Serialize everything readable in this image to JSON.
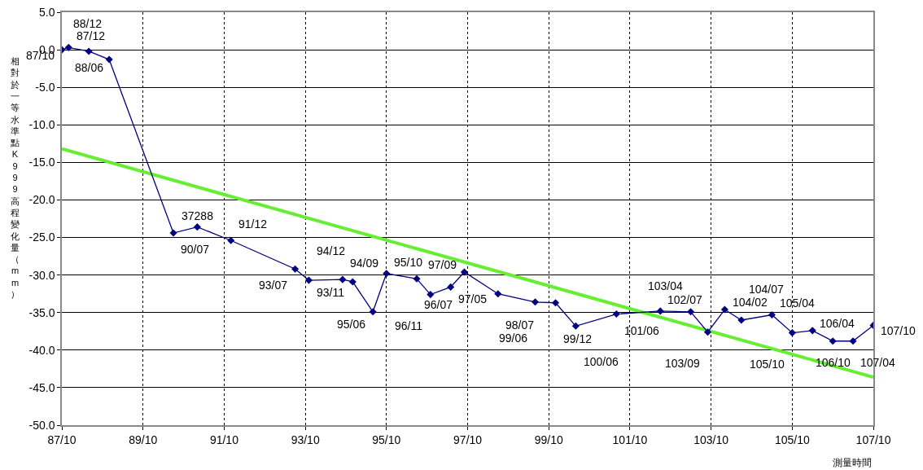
{
  "chart_data": {
    "type": "line",
    "xlabel": "測量時間",
    "ylabel": "相對於一等水準點K999高程變化量（mm）",
    "xlim": [
      "1998-10",
      "2018-10"
    ],
    "xticks": [
      {
        "value": "1998-10",
        "label": "87/10"
      },
      {
        "value": "2000-10",
        "label": "89/10"
      },
      {
        "value": "2002-10",
        "label": "91/10"
      },
      {
        "value": "2004-10",
        "label": "93/10"
      },
      {
        "value": "2006-10",
        "label": "95/10"
      },
      {
        "value": "2008-10",
        "label": "97/10"
      },
      {
        "value": "2010-10",
        "label": "99/10"
      },
      {
        "value": "2012-10",
        "label": "101/10"
      },
      {
        "value": "2014-10",
        "label": "103/10"
      },
      {
        "value": "2016-10",
        "label": "105/10"
      },
      {
        "value": "2018-10",
        "label": "107/10"
      }
    ],
    "ylim": [
      -50,
      5
    ],
    "yticks": [
      {
        "value": 5,
        "label": "5.0"
      },
      {
        "value": 0,
        "label": "0.0"
      },
      {
        "value": -5,
        "label": "-5.0"
      },
      {
        "value": -10,
        "label": "-10.0"
      },
      {
        "value": -15,
        "label": "-15.0"
      },
      {
        "value": -20,
        "label": "-20.0"
      },
      {
        "value": -25,
        "label": "-25.0"
      },
      {
        "value": -30,
        "label": "-30.0"
      },
      {
        "value": -35,
        "label": "-35.0"
      },
      {
        "value": -40,
        "label": "-40.0"
      },
      {
        "value": -45,
        "label": "-45.0"
      },
      {
        "value": -50,
        "label": "-50.0"
      }
    ],
    "grid": true,
    "marker": "diamond",
    "series": [
      {
        "color": "#000080",
        "x": [
          "1998-10",
          "1998-12",
          "1999-06",
          "1999-12",
          "2001-07",
          "2002-02",
          "2002-12",
          "2004-07",
          "2004-11",
          "2005-09",
          "2005-12",
          "2006-06",
          "2006-10",
          "2007-07",
          "2007-11",
          "2008-05",
          "2008-09",
          "2009-07",
          "2010-06",
          "2010-12",
          "2011-06",
          "2012-06",
          "2013-07",
          "2014-04",
          "2014-09",
          "2015-02",
          "2015-07",
          "2016-04",
          "2016-10",
          "2017-04",
          "2017-10",
          "2018-04",
          "2018-10"
        ],
        "values": [
          0.0,
          0.3,
          -0.2,
          -1.3,
          -24.4,
          -23.6,
          -25.4,
          -29.2,
          -30.7,
          -30.6,
          -30.9,
          -34.9,
          -29.8,
          -30.5,
          -32.6,
          -31.6,
          -29.6,
          -32.5,
          -33.6,
          -33.7,
          -36.8,
          -35.2,
          -34.8,
          -34.9,
          -37.6,
          -34.6,
          -36.0,
          -35.3,
          -37.7,
          -37.4,
          -38.8,
          -38.8,
          -36.7
        ]
      },
      {
        "color": "#66ee33",
        "marker": "none",
        "x": [
          "1998-10",
          "2018-10"
        ],
        "values": [
          -13.2,
          -43.6
        ]
      }
    ],
    "annotations": [
      {
        "text": "87/10",
        "x": "1998-10",
        "y": 0.0
      },
      {
        "text": "87/12",
        "x": "1998-12",
        "y": 0.3
      },
      {
        "text": "88/06",
        "x": "1999-06",
        "y": -0.2
      },
      {
        "text": "88/12",
        "x": "1999-12",
        "y": -1.3
      },
      {
        "text": "90/07",
        "x": "2001-07",
        "y": -24.4
      },
      {
        "text": "37288",
        "x": "2002-02",
        "y": -23.6
      },
      {
        "text": "91/12",
        "x": "2002-12",
        "y": -25.4
      },
      {
        "text": "93/07",
        "x": "2004-07",
        "y": -29.2
      },
      {
        "text": "93/11",
        "x": "2004-11",
        "y": -30.7
      },
      {
        "text": "94/09",
        "x": "2005-09",
        "y": -30.6
      },
      {
        "text": "94/12",
        "x": "2005-12",
        "y": -30.9
      },
      {
        "text": "95/06",
        "x": "2006-06",
        "y": -34.9
      },
      {
        "text": "95/10",
        "x": "2006-10",
        "y": -29.8
      },
      {
        "text": "96/07",
        "x": "2007-07",
        "y": -30.5
      },
      {
        "text": "96/11",
        "x": "2007-11",
        "y": -32.6
      },
      {
        "text": "97/05",
        "x": "2008-05",
        "y": -31.6
      },
      {
        "text": "97/09",
        "x": "2008-09",
        "y": -29.6
      },
      {
        "text": "98/07",
        "x": "2009-07",
        "y": -32.5
      },
      {
        "text": "99/06",
        "x": "2010-06",
        "y": -33.6
      },
      {
        "text": "99/12",
        "x": "2010-12",
        "y": -33.7
      },
      {
        "text": "100/06",
        "x": "2011-06",
        "y": -36.8
      },
      {
        "text": "101/06",
        "x": "2012-06",
        "y": -35.2
      },
      {
        "text": "102/07",
        "x": "2013-07",
        "y": -34.8
      },
      {
        "text": "103/04",
        "x": "2014-04",
        "y": -34.9
      },
      {
        "text": "103/09",
        "x": "2014-09",
        "y": -37.6
      },
      {
        "text": "104/02",
        "x": "2015-02",
        "y": -34.6
      },
      {
        "text": "104/07",
        "x": "2015-07",
        "y": -36.0
      },
      {
        "text": "105/04",
        "x": "2016-04",
        "y": -35.3
      },
      {
        "text": "105/10",
        "x": "2016-10",
        "y": -37.7
      },
      {
        "text": "106/04",
        "x": "2017-04",
        "y": -37.4
      },
      {
        "text": "106/10",
        "x": "2017-10",
        "y": -38.8
      },
      {
        "text": "107/04",
        "x": "2018-04",
        "y": -38.8
      },
      {
        "text": "107/10",
        "x": "2018-10",
        "y": -36.7
      }
    ]
  }
}
